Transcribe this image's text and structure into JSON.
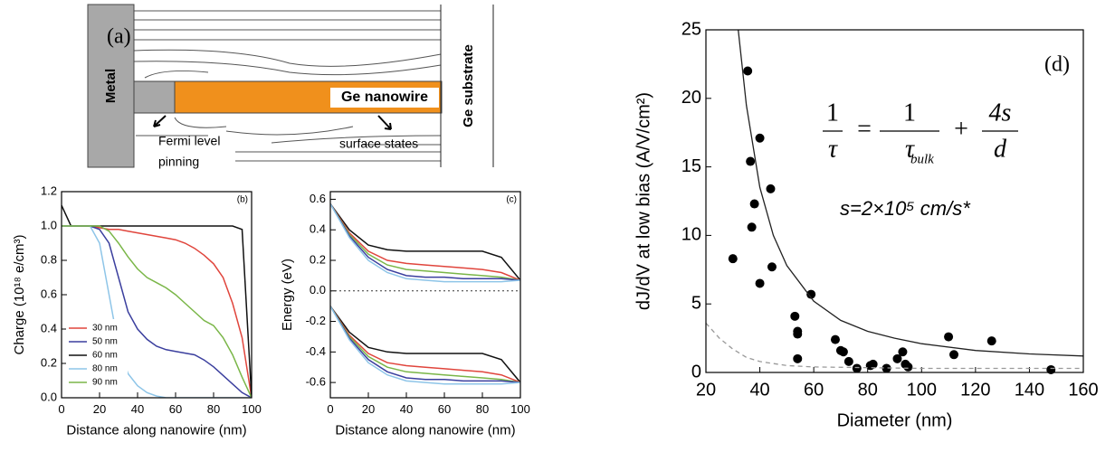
{
  "diagram": {
    "panel_label": "(a)",
    "metal": "Metal",
    "nanowire": "Ge nanowire",
    "substrate": "Ge substrate",
    "fermi_1": "Fermi level",
    "fermi_2": "pinning",
    "surface": "surface states"
  },
  "chart_data": [
    {
      "type": "line",
      "panel_label": "(b)",
      "x_label": "Distance along nanowire  (nm)",
      "y_label": "Charge  (10¹⁸ e/cm³)",
      "xlim": [
        0,
        100
      ],
      "xticks": [
        0,
        20,
        40,
        60,
        80,
        100
      ],
      "ylim": [
        0,
        1.2
      ],
      "yticks": [
        {
          "value": 0,
          "label": "0.0"
        },
        0.2,
        0.4,
        0.6,
        0.8,
        {
          "value": 1,
          "label": "1.0"
        },
        1.2
      ],
      "legend": "lower left",
      "x": [
        0,
        5,
        10,
        15,
        20,
        25,
        30,
        35,
        40,
        45,
        50,
        55,
        60,
        65,
        70,
        75,
        80,
        85,
        90,
        95,
        100
      ],
      "series": [
        {
          "name": "30 nm",
          "color": "#e0453c",
          "values": [
            1.0,
            1.0,
            1.0,
            1.0,
            0.99,
            0.98,
            0.98,
            0.97,
            0.96,
            0.95,
            0.94,
            0.93,
            0.92,
            0.9,
            0.87,
            0.83,
            0.78,
            0.7,
            0.55,
            0.35,
            0.0
          ]
        },
        {
          "name": "50 nm",
          "color": "#3b3f9e",
          "values": [
            1.0,
            1.0,
            1.0,
            1.0,
            0.98,
            0.9,
            0.7,
            0.5,
            0.4,
            0.34,
            0.3,
            0.28,
            0.27,
            0.26,
            0.25,
            0.22,
            0.18,
            0.13,
            0.08,
            0.03,
            0.0
          ]
        },
        {
          "name": "60 nm",
          "color": "#111111",
          "values": [
            1.12,
            1.0,
            1.0,
            1.0,
            1.0,
            1.0,
            1.0,
            1.0,
            1.0,
            1.0,
            1.0,
            1.0,
            1.0,
            1.0,
            1.0,
            1.0,
            1.0,
            1.0,
            1.0,
            0.98,
            0.0
          ]
        },
        {
          "name": "80 nm",
          "color": "#8ec5e8",
          "values": [
            1.0,
            1.0,
            1.0,
            1.0,
            0.9,
            0.6,
            0.3,
            0.14,
            0.07,
            0.03,
            0.01,
            0.0,
            0.0,
            0.0,
            0.0,
            0.0,
            0.0,
            0.0,
            0.0,
            0.0,
            0.0
          ]
        },
        {
          "name": "90 nm",
          "color": "#7ab648",
          "values": [
            1.0,
            1.0,
            1.0,
            1.0,
            1.0,
            0.97,
            0.9,
            0.82,
            0.75,
            0.7,
            0.67,
            0.64,
            0.6,
            0.55,
            0.5,
            0.45,
            0.42,
            0.35,
            0.25,
            0.12,
            0.0
          ]
        }
      ]
    },
    {
      "type": "line",
      "panel_label": "(c)",
      "x_label": "Distance along nanowire  (nm)",
      "y_label": "Energy  (eV)",
      "xlim": [
        0,
        100
      ],
      "xticks": [
        0,
        20,
        40,
        60,
        80,
        100
      ],
      "ylim": [
        -0.7,
        0.65
      ],
      "yticks": [
        -0.6,
        -0.4,
        -0.2,
        {
          "value": 0,
          "label": "0.0"
        },
        0.2,
        0.4,
        0.6
      ],
      "reference_line": 0,
      "x": [
        0,
        10,
        20,
        30,
        40,
        50,
        60,
        70,
        80,
        90,
        100
      ],
      "series": [
        {
          "color": "#111111",
          "values": [
            0.57,
            0.4,
            0.3,
            0.27,
            0.26,
            0.26,
            0.26,
            0.26,
            0.26,
            0.22,
            0.07
          ]
        },
        {
          "color": "#e0453c",
          "values": [
            0.57,
            0.38,
            0.26,
            0.2,
            0.18,
            0.17,
            0.16,
            0.15,
            0.14,
            0.12,
            0.07
          ]
        },
        {
          "color": "#7ab648",
          "values": [
            0.57,
            0.37,
            0.24,
            0.17,
            0.14,
            0.13,
            0.12,
            0.11,
            0.1,
            0.09,
            0.07
          ]
        },
        {
          "color": "#3b3f9e",
          "values": [
            0.57,
            0.36,
            0.22,
            0.14,
            0.1,
            0.09,
            0.09,
            0.08,
            0.08,
            0.08,
            0.07
          ]
        },
        {
          "color": "#8ec5e8",
          "values": [
            0.57,
            0.35,
            0.2,
            0.12,
            0.08,
            0.07,
            0.06,
            0.06,
            0.06,
            0.06,
            0.07
          ]
        },
        {
          "color": "#111111",
          "values": [
            -0.1,
            -0.27,
            -0.37,
            -0.4,
            -0.41,
            -0.41,
            -0.41,
            -0.41,
            -0.41,
            -0.45,
            -0.6
          ]
        },
        {
          "color": "#e0453c",
          "values": [
            -0.1,
            -0.29,
            -0.41,
            -0.47,
            -0.49,
            -0.5,
            -0.51,
            -0.52,
            -0.53,
            -0.55,
            -0.6
          ]
        },
        {
          "color": "#7ab648",
          "values": [
            -0.1,
            -0.3,
            -0.43,
            -0.5,
            -0.53,
            -0.54,
            -0.55,
            -0.56,
            -0.57,
            -0.58,
            -0.6
          ]
        },
        {
          "color": "#3b3f9e",
          "values": [
            -0.1,
            -0.31,
            -0.45,
            -0.53,
            -0.57,
            -0.58,
            -0.58,
            -0.59,
            -0.59,
            -0.59,
            -0.6
          ]
        },
        {
          "color": "#8ec5e8",
          "values": [
            -0.1,
            -0.32,
            -0.47,
            -0.55,
            -0.59,
            -0.6,
            -0.61,
            -0.61,
            -0.61,
            -0.61,
            -0.6
          ]
        }
      ]
    },
    {
      "type": "scatter",
      "panel_label": "(d)",
      "x_label": "Diameter  (nm)",
      "y_label": "dJ/dV at low bias  (A/V/cm²)",
      "xlim": [
        20,
        160
      ],
      "xticks": [
        20,
        40,
        60,
        80,
        100,
        120,
        140,
        160
      ],
      "ylim": [
        0,
        25
      ],
      "yticks": [
        0,
        5,
        10,
        15,
        20,
        25
      ],
      "equation": {
        "lhs_num": "1",
        "lhs_den": "τ",
        "eq": "=",
        "t1_num": "1",
        "t1_den": "τ",
        "t1_sub": "bulk",
        "plus": "+",
        "t2_num": "4s",
        "t2_den": "d"
      },
      "annotation": "s=2×10⁵ cm/s*",
      "series": [
        {
          "style": "markers",
          "color": "#000000",
          "x": [
            30,
            35.5,
            36.5,
            37,
            38,
            40,
            40,
            44,
            44.5,
            53,
            54,
            54,
            54,
            59,
            68,
            70,
            71,
            73,
            76,
            81,
            82,
            87,
            91,
            93,
            94,
            95,
            110,
            112,
            126,
            148
          ],
          "values": [
            8.3,
            22,
            15.4,
            10.6,
            12.3,
            17.1,
            6.5,
            13.4,
            7.7,
            4.1,
            3,
            2.8,
            1,
            5.7,
            2.4,
            1.6,
            1.5,
            0.8,
            0.3,
            0.5,
            0.6,
            0.3,
            1,
            1.5,
            0.6,
            0.4,
            2.6,
            1.3,
            2.3,
            0.2
          ]
        },
        {
          "style": "solid",
          "color": "#222222",
          "x": [
            32,
            35,
            40,
            45,
            50,
            60,
            70,
            80,
            90,
            100,
            120,
            140,
            160
          ],
          "values": [
            25,
            19.5,
            13.5,
            10,
            7.8,
            5.2,
            3.8,
            3,
            2.5,
            2.1,
            1.6,
            1.35,
            1.2
          ]
        },
        {
          "style": "dashed",
          "color": "#999999",
          "x": [
            20,
            25,
            30,
            35,
            40,
            50,
            60,
            80,
            100,
            160
          ],
          "values": [
            3.6,
            2.5,
            1.7,
            1.1,
            0.8,
            0.5,
            0.4,
            0.35,
            0.3,
            0.3
          ]
        }
      ]
    }
  ]
}
